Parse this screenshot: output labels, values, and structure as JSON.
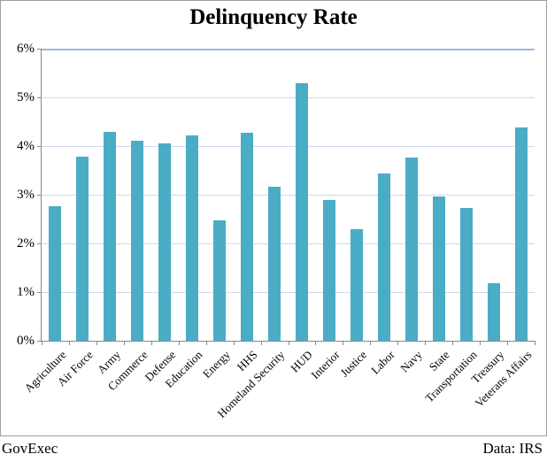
{
  "title": "Delinquency Rate",
  "footer": {
    "left": "GovExec",
    "right": "Data: IRS"
  },
  "colors": {
    "bar": "#4BACC6",
    "gridline": "#cdd9f1",
    "top_gridline": "#9fb5e0",
    "axis": "#898989",
    "frame_border": "#9e9e9e",
    "text": "#000000"
  },
  "chart_data": {
    "type": "bar",
    "title": "Delinquency Rate",
    "xlabel": "",
    "ylabel": "",
    "unit": "%",
    "ylim": [
      0,
      6
    ],
    "ytick_step": 1,
    "ytick_labels": [
      "0%",
      "1%",
      "2%",
      "3%",
      "4%",
      "5%",
      "6%"
    ],
    "grid": true,
    "legend": "none",
    "categories": [
      "Agriculture",
      "Air Force",
      "Army",
      "Commerce",
      "Defense",
      "Education",
      "Energy",
      "HHS",
      "Homeland Security",
      "HUD",
      "Interior",
      "Justice",
      "Labor",
      "Navy",
      "State",
      "Transportation",
      "Treasury",
      "Veterans Affairs"
    ],
    "values": [
      2.76,
      3.79,
      4.29,
      4.11,
      4.05,
      4.22,
      2.48,
      4.28,
      3.17,
      5.3,
      2.9,
      2.29,
      3.44,
      3.76,
      2.96,
      2.73,
      1.18,
      4.38
    ],
    "source_left": "GovExec",
    "source_right": "Data: IRS"
  }
}
